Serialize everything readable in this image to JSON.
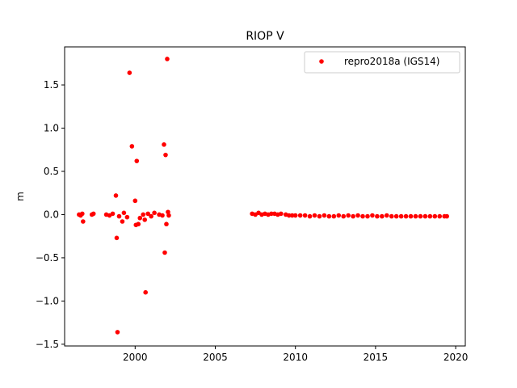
{
  "chart_data": {
    "type": "scatter",
    "title": "RIOP V",
    "xlabel": "",
    "ylabel": "m",
    "xlim": [
      1995.6,
      2020.6
    ],
    "ylim": [
      -1.52,
      1.94
    ],
    "xticks": [
      2000,
      2005,
      2010,
      2015,
      2020
    ],
    "xtick_labels": [
      "2000",
      "2005",
      "2010",
      "2015",
      "2020"
    ],
    "yticks": [
      -1.5,
      -1.0,
      -0.5,
      0.0,
      0.5,
      1.0,
      1.5
    ],
    "ytick_labels": [
      "−1.5",
      "−1.0",
      "−0.5",
      "0.0",
      "0.5",
      "1.0",
      "1.5"
    ],
    "grid": false,
    "legend": {
      "placement": "top-right",
      "entries": [
        "repro2018a (IGS14)"
      ]
    },
    "series": [
      {
        "name": "repro2018a (IGS14)",
        "color": "#ff0000",
        "marker": "circle",
        "points": [
          [
            1996.5,
            0.0
          ],
          [
            1996.6,
            -0.01
          ],
          [
            1996.7,
            0.01
          ],
          [
            1996.75,
            -0.08
          ],
          [
            1997.3,
            0.0
          ],
          [
            1997.4,
            0.01
          ],
          [
            1998.2,
            0.0
          ],
          [
            1998.4,
            -0.01
          ],
          [
            1998.6,
            0.01
          ],
          [
            1998.8,
            0.22
          ],
          [
            1998.85,
            -0.27
          ],
          [
            1998.9,
            -1.36
          ],
          [
            1999.0,
            -0.02
          ],
          [
            1999.2,
            -0.08
          ],
          [
            1999.3,
            0.02
          ],
          [
            1999.5,
            -0.03
          ],
          [
            1999.65,
            1.64
          ],
          [
            1999.8,
            0.79
          ],
          [
            2000.0,
            0.16
          ],
          [
            2000.05,
            -0.12
          ],
          [
            2000.1,
            0.62
          ],
          [
            2000.2,
            -0.11
          ],
          [
            2000.3,
            -0.04
          ],
          [
            2000.5,
            0.0
          ],
          [
            2000.6,
            -0.06
          ],
          [
            2000.65,
            -0.9
          ],
          [
            2000.8,
            0.01
          ],
          [
            2001.0,
            -0.02
          ],
          [
            2001.2,
            0.02
          ],
          [
            2001.5,
            0.0
          ],
          [
            2001.7,
            -0.01
          ],
          [
            2001.8,
            0.81
          ],
          [
            2001.85,
            -0.44
          ],
          [
            2001.9,
            0.69
          ],
          [
            2001.95,
            -0.11
          ],
          [
            2002.0,
            1.8
          ],
          [
            2002.05,
            0.03
          ],
          [
            2002.1,
            -0.01
          ],
          [
            2007.3,
            0.01
          ],
          [
            2007.5,
            0.0
          ],
          [
            2007.7,
            0.02
          ],
          [
            2007.9,
            0.0
          ],
          [
            2008.1,
            0.01
          ],
          [
            2008.3,
            0.0
          ],
          [
            2008.5,
            0.01
          ],
          [
            2008.7,
            0.01
          ],
          [
            2008.9,
            0.0
          ],
          [
            2009.1,
            0.01
          ],
          [
            2009.4,
            0.0
          ],
          [
            2009.6,
            -0.01
          ],
          [
            2009.8,
            -0.01
          ],
          [
            2010.0,
            -0.01
          ],
          [
            2010.3,
            -0.01
          ],
          [
            2010.6,
            -0.01
          ],
          [
            2010.9,
            -0.02
          ],
          [
            2011.2,
            -0.01
          ],
          [
            2011.5,
            -0.02
          ],
          [
            2011.8,
            -0.01
          ],
          [
            2012.1,
            -0.02
          ],
          [
            2012.4,
            -0.02
          ],
          [
            2012.7,
            -0.01
          ],
          [
            2013.0,
            -0.02
          ],
          [
            2013.3,
            -0.01
          ],
          [
            2013.6,
            -0.02
          ],
          [
            2013.9,
            -0.01
          ],
          [
            2014.2,
            -0.02
          ],
          [
            2014.5,
            -0.02
          ],
          [
            2014.8,
            -0.01
          ],
          [
            2015.1,
            -0.02
          ],
          [
            2015.4,
            -0.02
          ],
          [
            2015.7,
            -0.01
          ],
          [
            2016.0,
            -0.02
          ],
          [
            2016.3,
            -0.02
          ],
          [
            2016.6,
            -0.02
          ],
          [
            2016.9,
            -0.02
          ],
          [
            2017.2,
            -0.02
          ],
          [
            2017.5,
            -0.02
          ],
          [
            2017.8,
            -0.02
          ],
          [
            2018.1,
            -0.02
          ],
          [
            2018.4,
            -0.02
          ],
          [
            2018.7,
            -0.02
          ],
          [
            2019.0,
            -0.02
          ],
          [
            2019.3,
            -0.02
          ],
          [
            2019.45,
            -0.02
          ]
        ]
      }
    ]
  }
}
